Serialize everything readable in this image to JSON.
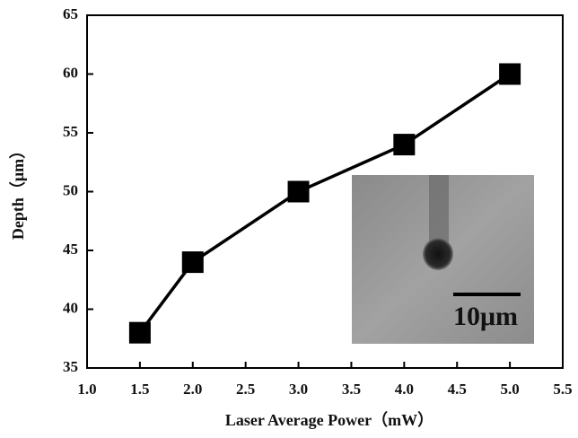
{
  "chart_data": {
    "type": "line",
    "x_label": "Laser Average Power（mW）",
    "y_label": "Depth（μm）",
    "x": [
      1.5,
      2.0,
      3.0,
      4.0,
      5.0
    ],
    "values": [
      38,
      44,
      50,
      54,
      60
    ],
    "color": "#000000",
    "marker": "square",
    "xlim": [
      1.0,
      5.5
    ],
    "xticks": [
      {
        "value": 1.0,
        "label": "1.0"
      },
      {
        "value": 1.5,
        "label": "1.5"
      },
      {
        "value": 2.0,
        "label": "2.0"
      },
      {
        "value": 2.5,
        "label": "2.5"
      },
      {
        "value": 3.0,
        "label": "3.0"
      },
      {
        "value": 3.5,
        "label": "3.5"
      },
      {
        "value": 4.0,
        "label": "4.0"
      },
      {
        "value": 4.5,
        "label": "4.5"
      },
      {
        "value": 5.0,
        "label": "5.0"
      },
      {
        "value": 5.5,
        "label": "5.5"
      }
    ],
    "ylim": [
      35,
      65
    ],
    "yticks": [
      35,
      40,
      45,
      50,
      55,
      60,
      65
    ],
    "inset_label": "10μm"
  }
}
